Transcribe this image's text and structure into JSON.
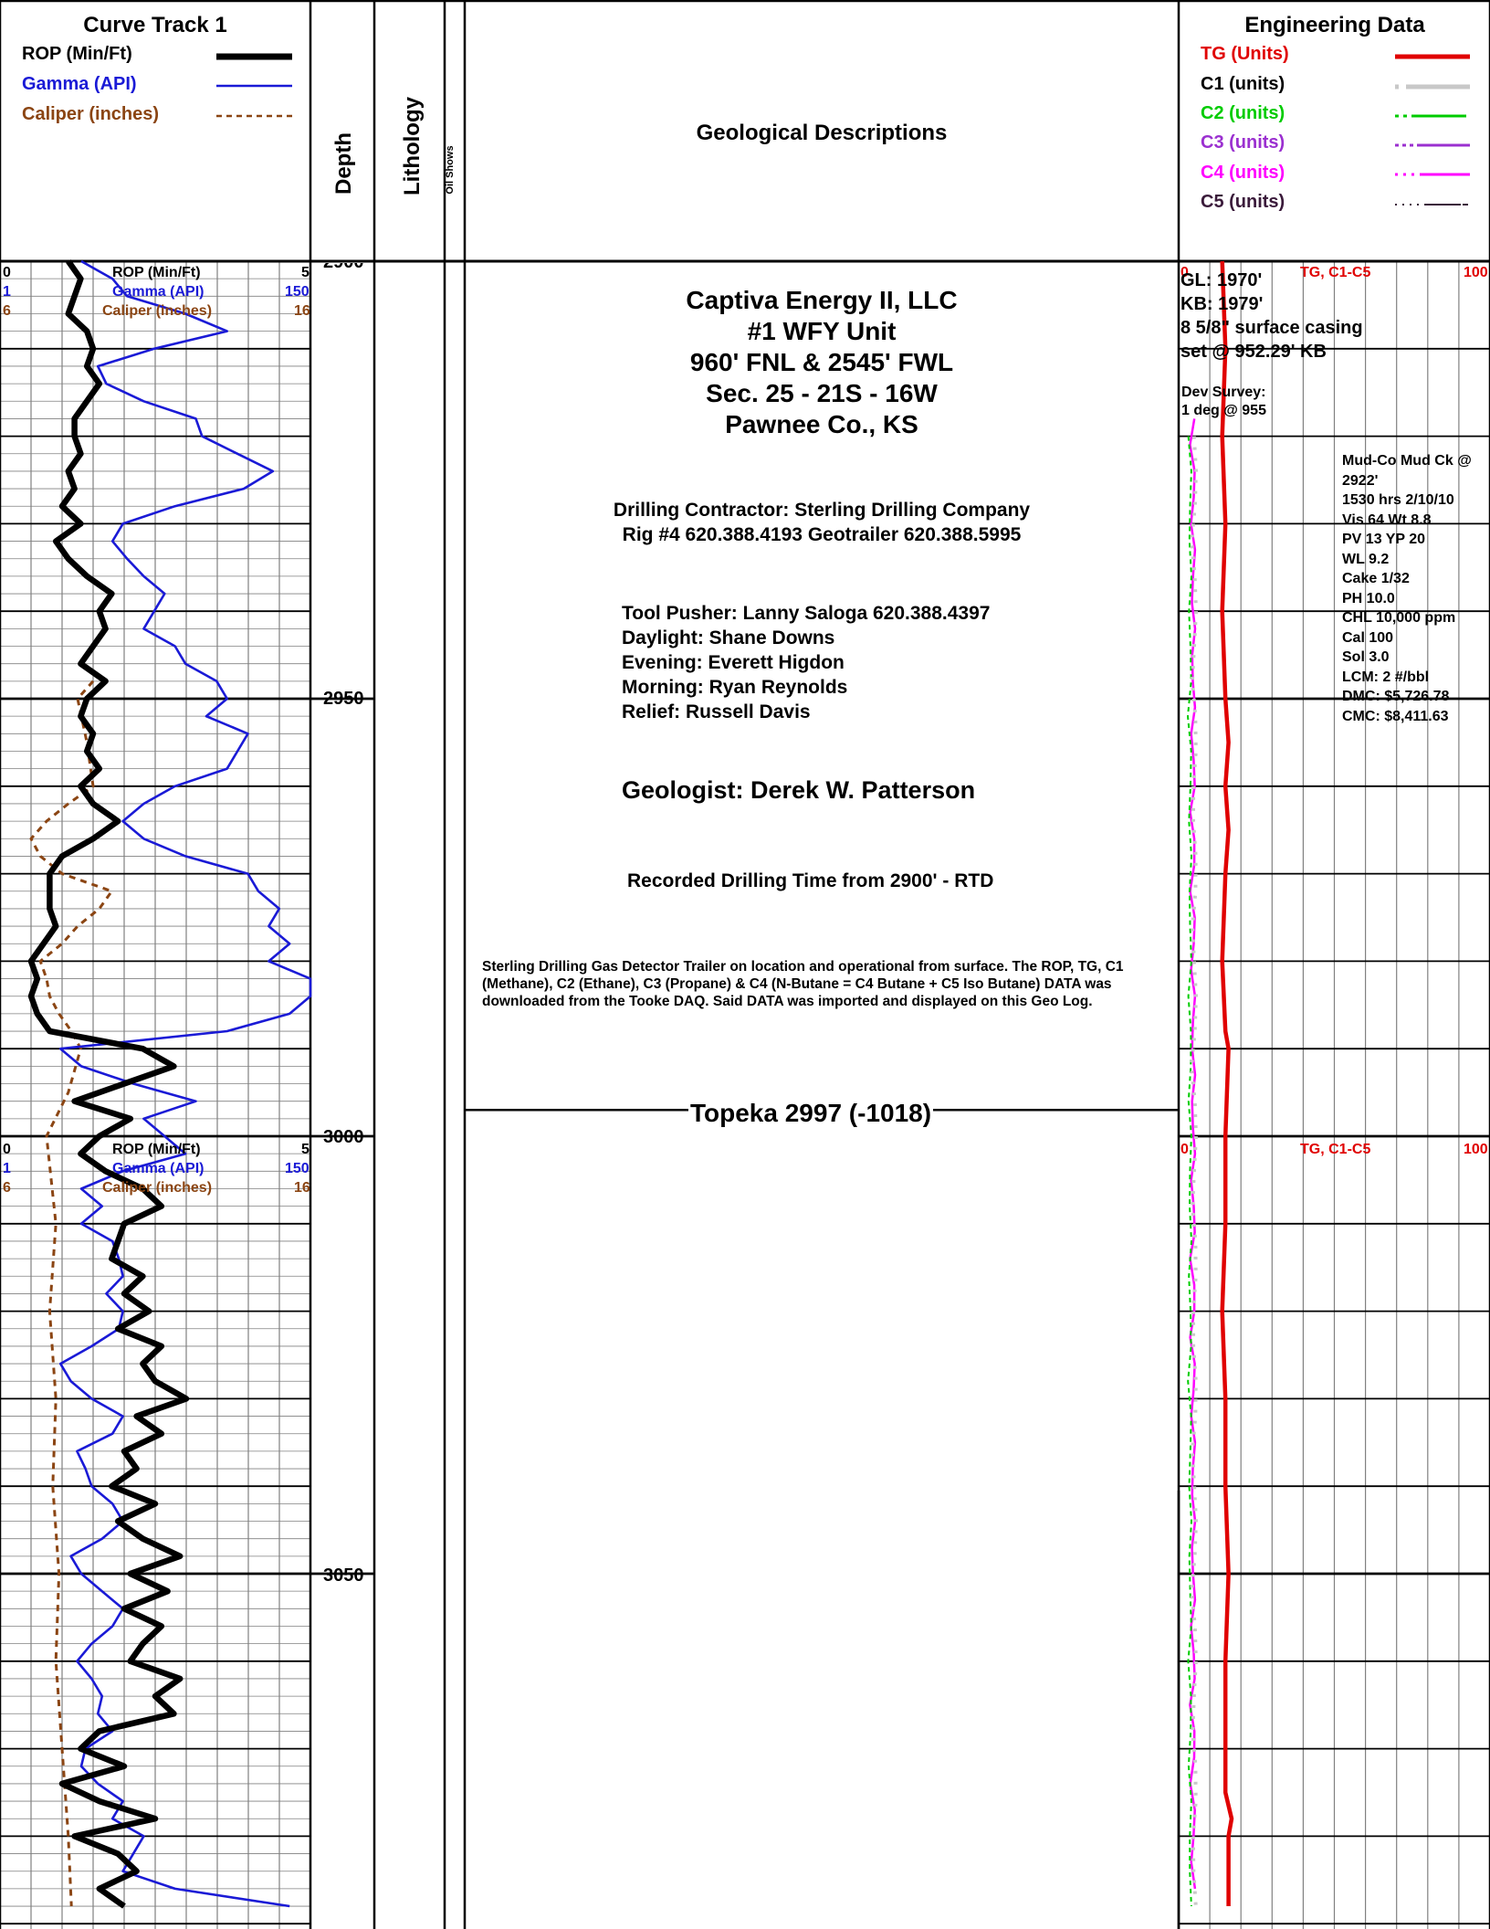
{
  "colors": {
    "rop": "#000000",
    "gamma": "#1a1ad6",
    "caliper": "#8b4513",
    "tg": "#e00000",
    "c1": "#c8c8c8",
    "c2": "#00cc00",
    "c3": "#9b30d0",
    "c4": "#ff00ff",
    "c5": "#3a1a3a",
    "grid": "#808080"
  },
  "header": {
    "curve_track_title": "Curve Track 1",
    "legend": [
      {
        "label": "ROP (Min/Ft)",
        "color": "#000000"
      },
      {
        "label": "Gamma (API)",
        "color": "#1a1ad6"
      },
      {
        "label": "Caliper (inches)",
        "color": "#8b4513"
      }
    ],
    "depth_label": "Depth",
    "lithology_label": "Lithology",
    "oil_shows_label": "Oil Shows",
    "geo_desc_label": "Geological Descriptions",
    "engineering_title": "Engineering Data",
    "eng_legend": [
      {
        "label": "TG (Units)",
        "color": "#e00000"
      },
      {
        "label": "C1 (units)",
        "color": "#000000"
      },
      {
        "label": "C2 (units)",
        "color": "#00cc00"
      },
      {
        "label": "C3 (units)",
        "color": "#9b30d0"
      },
      {
        "label": "C4 (units)",
        "color": "#ff00ff"
      },
      {
        "label": "C5 (units)",
        "color": "#3a1a3a"
      }
    ]
  },
  "scales": {
    "rop_left": "0",
    "rop_label": "ROP (Min/Ft)",
    "rop_right": "5",
    "gamma_left": "1",
    "gamma_label": "Gamma (API)",
    "gamma_right": "150",
    "caliper_left": "6",
    "caliper_label": "Caliper (inches)",
    "caliper_right": "16",
    "eng_left": "0",
    "eng_label": "TG, C1-C5",
    "eng_right": "100"
  },
  "depth_ticks": [
    {
      "value": "2900",
      "depth": 2900
    },
    {
      "value": "2950",
      "depth": 2950
    },
    {
      "value": "3000",
      "depth": 3000
    },
    {
      "value": "3050",
      "depth": 3050
    }
  ],
  "well": {
    "operator": "Captiva Energy II, LLC",
    "well_name": "#1 WFY Unit",
    "location": "960' FNL & 2545' FWL",
    "section": "Sec. 25 - 21S - 16W",
    "county": "Pawnee Co., KS",
    "contractor_line1": "Drilling Contractor: Sterling Drilling Company",
    "contractor_line2": "Rig #4  620.388.4193  Geotrailer  620.388.5995",
    "crew": [
      "Tool Pusher: Lanny Saloga  620.388.4397",
      "Daylight: Shane Downs",
      "Evening: Everett Higdon",
      "Morning: Ryan Reynolds",
      "Relief: Russell Davis"
    ],
    "geologist": "Geologist:  Derek W. Patterson",
    "drilling_time": "Recorded Drilling Time from 2900' - RTD",
    "gas_note": [
      "Sterling Drilling Gas Detector Trailer on location and operational from surface. The ROP, TG, C1",
      "(Methane), C2 (Ethane), C3 (Propane) & C4 (N-Butane = C4 Butane + C5 Iso Butane) DATA was",
      "downloaded from the Tooke DAQ. Said DATA was imported and displayed on this Geo Log."
    ],
    "formation_top": "Topeka  2997 (-1018)"
  },
  "eng_notes": {
    "gl": "GL: 1970'",
    "kb": "KB: 1979'",
    "casing1": "8 5/8\" surface casing",
    "casing2": "set @ 952.29' KB",
    "dev1": "Dev Survey:",
    "dev2": "1 deg @ 955",
    "mud": [
      "Mud-Co Mud Ck @",
      "2922'",
      "1530 hrs  2/10/10",
      "Vis 64   Wt 8.8",
      "PV 13   YP 20",
      "WL 9.2",
      "Cake 1/32",
      "PH 10.0",
      "CHL 10,000 ppm",
      "Cal 100",
      "Sol 3.0",
      "LCM: 2 #/bbl",
      "DMC: $5,726.78",
      "CMC: $8,411.63"
    ]
  },
  "chart_data": {
    "type": "line",
    "depth_range": [
      2900,
      3088
    ],
    "depth_axis_label": "Depth",
    "series": [
      {
        "name": "ROP (Min/Ft)",
        "range": [
          0,
          5
        ],
        "depth": [
          2900,
          2902,
          2904,
          2906,
          2908,
          2910,
          2912,
          2914,
          2916,
          2918,
          2920,
          2922,
          2924,
          2926,
          2928,
          2930,
          2932,
          2934,
          2936,
          2938,
          2940,
          2942,
          2944,
          2946,
          2948,
          2950,
          2952,
          2954,
          2956,
          2958,
          2960,
          2962,
          2964,
          2966,
          2968,
          2970,
          2972,
          2974,
          2976,
          2978,
          2980,
          2982,
          2984,
          2986,
          2988,
          2990,
          2992,
          2994,
          2996,
          2998,
          3000,
          3002,
          3004,
          3006,
          3008,
          3010,
          3012,
          3014,
          3016,
          3018,
          3020,
          3022,
          3024,
          3026,
          3028,
          3030,
          3032,
          3034,
          3036,
          3038,
          3040,
          3042,
          3044,
          3046,
          3048,
          3050,
          3052,
          3054,
          3056,
          3058,
          3060,
          3062,
          3064,
          3066,
          3068,
          3070,
          3072,
          3074,
          3076,
          3078,
          3080,
          3082,
          3084,
          3086,
          3088
        ],
        "values": [
          1.1,
          1.3,
          1.2,
          1.1,
          1.4,
          1.5,
          1.4,
          1.6,
          1.4,
          1.2,
          1.2,
          1.3,
          1.1,
          1.2,
          1.0,
          1.3,
          0.9,
          1.1,
          1.4,
          1.8,
          1.6,
          1.7,
          1.5,
          1.3,
          1.7,
          1.4,
          1.3,
          1.5,
          1.4,
          1.6,
          1.3,
          1.5,
          1.9,
          1.5,
          1.0,
          0.8,
          0.8,
          0.8,
          0.9,
          0.7,
          0.5,
          0.6,
          0.5,
          0.6,
          0.8,
          2.3,
          2.8,
          2.0,
          1.2,
          2.1,
          1.6,
          1.3,
          1.7,
          2.3,
          2.6,
          2.0,
          1.9,
          1.8,
          2.3,
          2.0,
          2.4,
          1.9,
          2.6,
          2.3,
          2.5,
          3.0,
          2.2,
          2.6,
          2.0,
          2.2,
          1.8,
          2.5,
          1.9,
          2.3,
          2.9,
          2.1,
          2.7,
          2.0,
          2.6,
          2.3,
          2.1,
          2.9,
          2.5,
          2.8,
          1.6,
          1.3,
          2.0,
          1.0,
          1.6,
          2.5,
          1.2,
          1.9,
          2.2,
          1.6,
          2.0
        ]
      },
      {
        "name": "Gamma (API)",
        "range": [
          1,
          150
        ],
        "depth": [
          2900,
          2902,
          2904,
          2906,
          2908,
          2910,
          2912,
          2914,
          2916,
          2918,
          2920,
          2922,
          2924,
          2926,
          2928,
          2930,
          2932,
          2934,
          2936,
          2938,
          2940,
          2942,
          2944,
          2946,
          2948,
          2950,
          2952,
          2954,
          2956,
          2958,
          2960,
          2962,
          2964,
          2966,
          2968,
          2970,
          2972,
          2974,
          2976,
          2978,
          2980,
          2982,
          2984,
          2986,
          2988,
          2990,
          2992,
          2994,
          2996,
          2998,
          3000,
          3002,
          3004,
          3006,
          3008,
          3010,
          3012,
          3014,
          3016,
          3018,
          3020,
          3022,
          3024,
          3026,
          3028,
          3030,
          3032,
          3034,
          3036,
          3038,
          3040,
          3042,
          3044,
          3046,
          3048,
          3050,
          3052,
          3054,
          3056,
          3058,
          3060,
          3062,
          3064,
          3066,
          3068,
          3070,
          3072,
          3074,
          3076,
          3078,
          3080,
          3082,
          3084,
          3086,
          3088
        ],
        "values": [
          40,
          55,
          62,
          90,
          110,
          75,
          48,
          52,
          70,
          95,
          98,
          115,
          132,
          118,
          85,
          60,
          55,
          62,
          70,
          80,
          75,
          70,
          85,
          90,
          105,
          110,
          100,
          120,
          115,
          110,
          85,
          70,
          60,
          70,
          90,
          120,
          125,
          135,
          130,
          140,
          130,
          150,
          150,
          140,
          110,
          30,
          40,
          65,
          95,
          70,
          80,
          90,
          60,
          40,
          50,
          40,
          55,
          58,
          60,
          52,
          60,
          58,
          45,
          30,
          35,
          45,
          60,
          55,
          38,
          42,
          45,
          55,
          60,
          50,
          35,
          40,
          50,
          60,
          55,
          45,
          38,
          45,
          50,
          48,
          55,
          42,
          40,
          48,
          60,
          55,
          70,
          65,
          60,
          85,
          140
        ]
      },
      {
        "name": "Caliper (inches)",
        "range": [
          6,
          16
        ],
        "depth": [
          2948,
          2950,
          2955,
          2960,
          2962,
          2964,
          2966,
          2968,
          2970,
          2972,
          2974,
          2976,
          2978,
          2980,
          2982,
          2984,
          2986,
          2988,
          2990,
          2995,
          3000,
          3010,
          3020,
          3030,
          3040,
          3050,
          3060,
          3070,
          3080,
          3088
        ],
        "values": [
          9.0,
          8.5,
          8.8,
          9.0,
          8.2,
          7.5,
          7.0,
          7.3,
          8.0,
          9.6,
          9.2,
          8.5,
          8.0,
          7.3,
          7.5,
          7.6,
          7.9,
          8.3,
          8.6,
          8.2,
          7.5,
          7.8,
          7.6,
          7.8,
          7.7,
          7.9,
          7.8,
          8.0,
          8.2,
          8.3
        ]
      },
      {
        "name": "TG (Units)",
        "range": [
          0,
          100
        ],
        "depth": [
          2900,
          2910,
          2920,
          2930,
          2940,
          2950,
          2955,
          2960,
          2965,
          2970,
          2980,
          2988,
          2990,
          3000,
          3010,
          3020,
          3030,
          3040,
          3050,
          3060,
          3070,
          3075,
          3078,
          3080,
          3088
        ],
        "values": [
          14,
          15,
          14,
          15,
          14,
          15,
          16,
          15,
          16,
          15,
          14,
          15,
          16,
          15,
          15,
          14,
          15,
          15,
          16,
          15,
          15,
          15,
          17,
          16,
          16
        ]
      }
    ]
  }
}
